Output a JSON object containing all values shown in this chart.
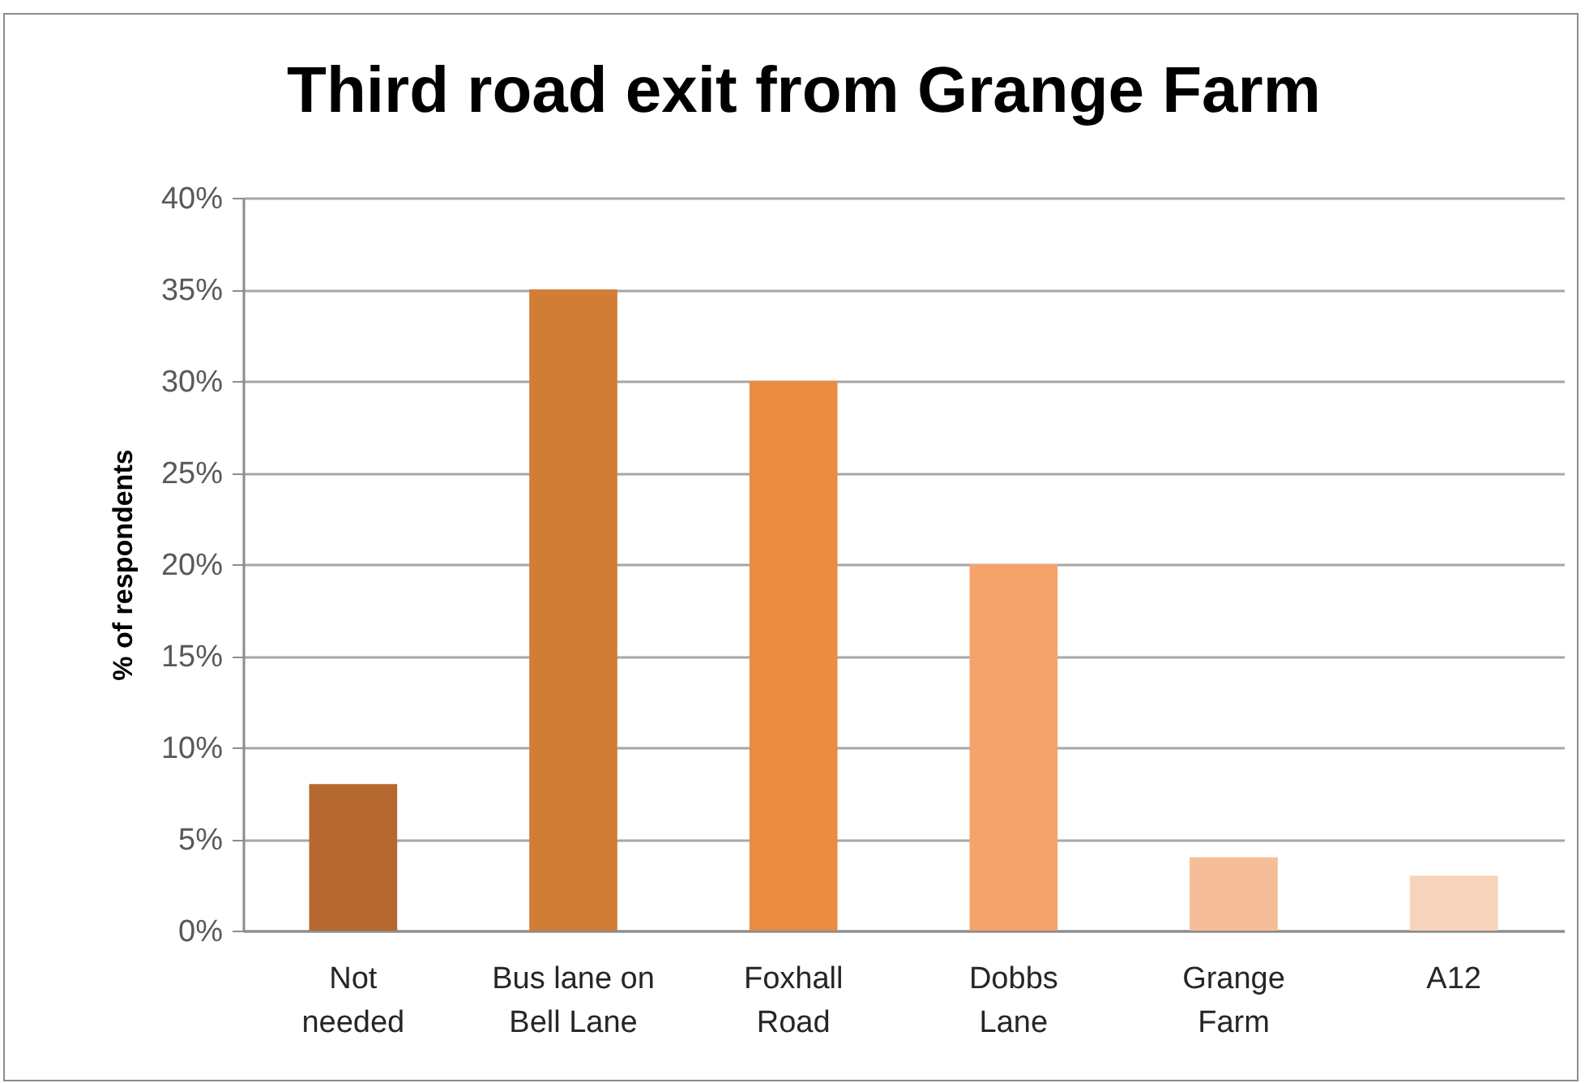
{
  "chart_data": {
    "type": "bar",
    "title": "Third road exit from Grange Farm",
    "ylabel": "% of respondents",
    "categories": [
      "Not needed",
      "Bus lane on Bell Lane",
      "Foxhall Road",
      "Dobbs Lane",
      "Grange Farm",
      "A12"
    ],
    "values": [
      8,
      35,
      30,
      20,
      4,
      3
    ],
    "colors": [
      "#b5692f",
      "#d27d35",
      "#ea8c42",
      "#f4a46a",
      "#f6be98",
      "#f8d3bb"
    ],
    "ylim": [
      0,
      40
    ],
    "yticks": [
      {
        "value": 0,
        "label": "0%"
      },
      {
        "value": 5,
        "label": "5%"
      },
      {
        "value": 10,
        "label": "10%"
      },
      {
        "value": 15,
        "label": "15%"
      },
      {
        "value": 20,
        "label": "20%"
      },
      {
        "value": 25,
        "label": "25%"
      },
      {
        "value": 30,
        "label": "30%"
      },
      {
        "value": 35,
        "label": "35%"
      },
      {
        "value": 40,
        "label": "40%"
      }
    ],
    "grid": "y"
  }
}
